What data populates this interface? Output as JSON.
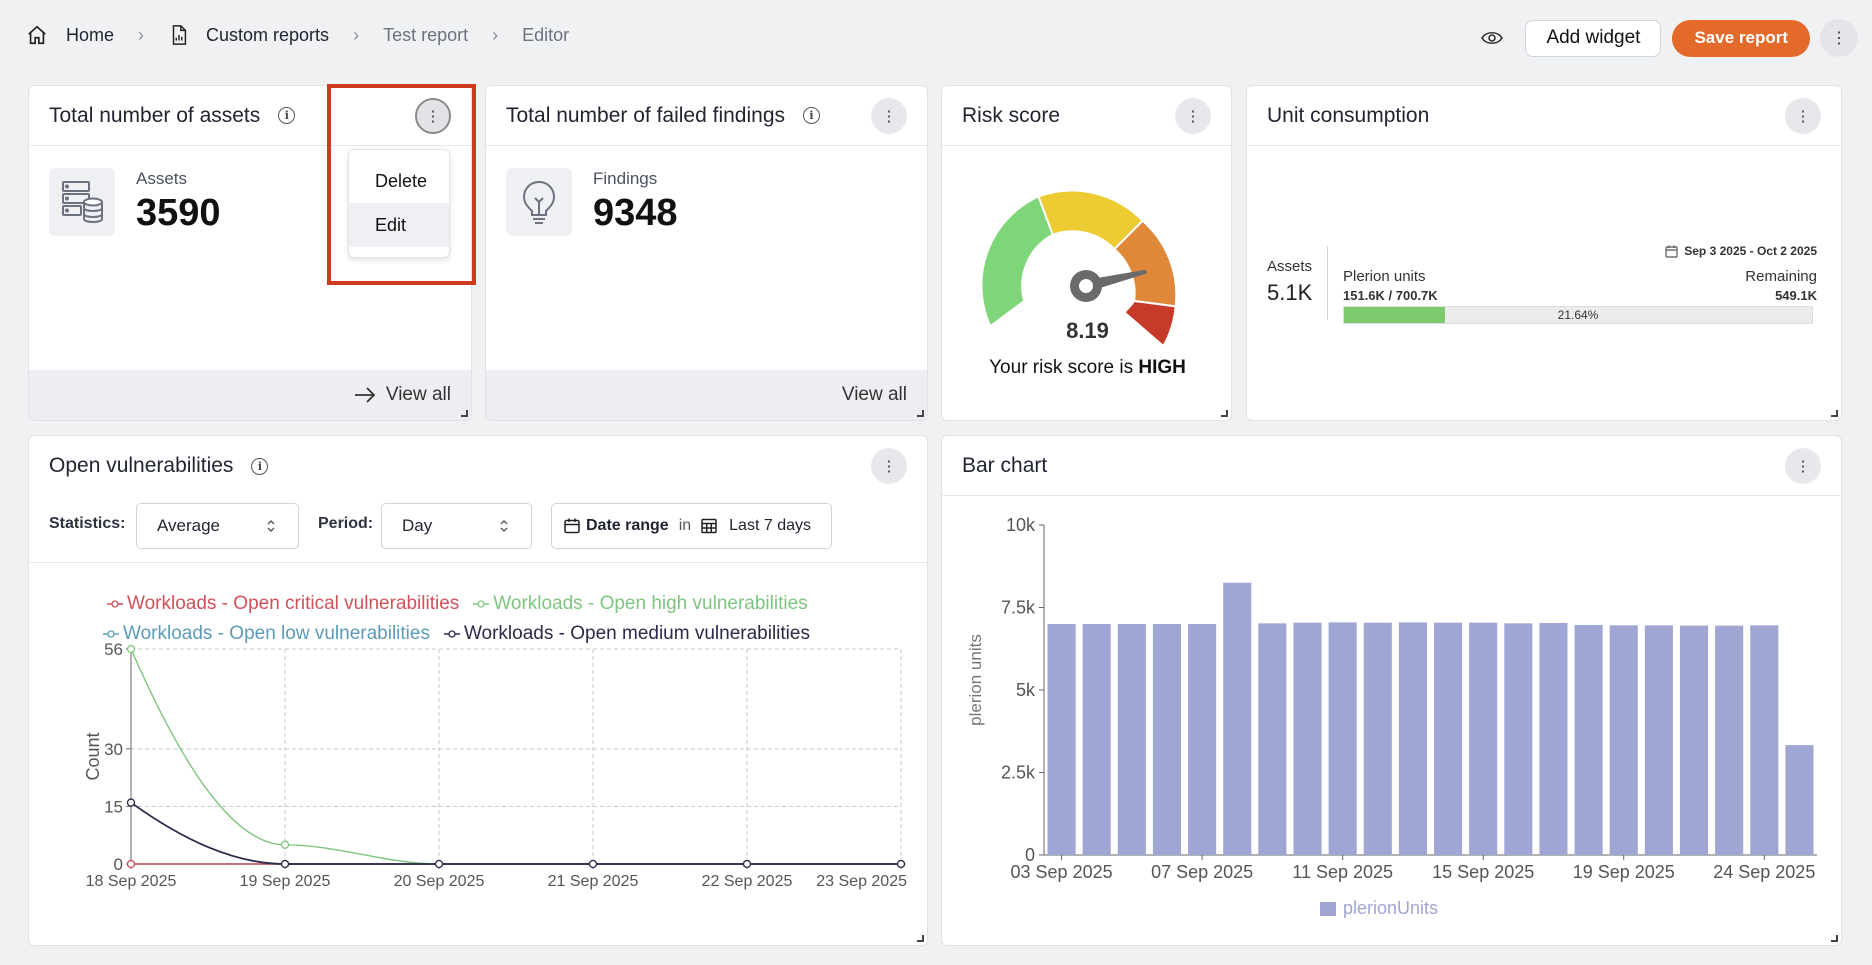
{
  "breadcrumb": {
    "home": "Home",
    "custom_reports": "Custom reports",
    "report": "Test report",
    "current": "Editor"
  },
  "toolbar": {
    "add_widget": "Add widget",
    "save_report": "Save report"
  },
  "widgets": {
    "assets": {
      "title": "Total number of assets",
      "label": "Assets",
      "value": "3590",
      "view_all": "View all"
    },
    "findings": {
      "title": "Total number of failed findings",
      "label": "Findings",
      "value": "9348",
      "view_all": "View all"
    },
    "risk": {
      "title": "Risk score",
      "score": "8.19",
      "text_prefix": "Your risk score is ",
      "level": "HIGH",
      "needle_value": 8.19,
      "max": 10
    },
    "units": {
      "title": "Unit consumption",
      "assets_label": "Assets",
      "assets_value": "5.1K",
      "date_range": "Sep 3 2025 - Oct 2 2025",
      "units_label": "Plerion units",
      "units_value": "151.6K / 700.7K",
      "remaining_label": "Remaining",
      "remaining_value": "549.1K",
      "percent": "21.64%",
      "percent_value": 21.64
    }
  },
  "context_menu": {
    "delete": "Delete",
    "edit": "Edit"
  },
  "open_vuln": {
    "title": "Open vulnerabilities",
    "statistics_label": "Statistics:",
    "statistics_value": "Average",
    "period_label": "Period:",
    "period_value": "Day",
    "date_range_label": "Date range",
    "in_text": "in",
    "date_range_value": "Last 7 days"
  },
  "bar_widget": {
    "title": "Bar chart"
  },
  "colors": {
    "accent": "#e36a2a",
    "critical": "#d1505a",
    "high": "#7dc57e",
    "low": "#5b9bb8",
    "medium": "#2a2a4a",
    "bar": "#a0a6d4",
    "highlight": "#cf3a1d"
  },
  "chart_data": [
    {
      "type": "line",
      "ylabel": "Count",
      "x": [
        "18 Sep 2025",
        "19 Sep 2025",
        "20 Sep 2025",
        "21 Sep 2025",
        "22 Sep 2025",
        "23 Sep 2025"
      ],
      "yticks": [
        0,
        15,
        30,
        56
      ],
      "ylim": [
        0,
        56
      ],
      "grid": true,
      "legend_placement": "top",
      "series": [
        {
          "name": "Workloads - Open critical vulnerabilities",
          "color": "#d1505a",
          "values": [
            0,
            0,
            0,
            0,
            0,
            0
          ]
        },
        {
          "name": "Workloads - Open high vulnerabilities",
          "color": "#7dc57e",
          "values": [
            56,
            5,
            0,
            0,
            0,
            0
          ]
        },
        {
          "name": "Workloads - Open low vulnerabilities",
          "color": "#5b9bb8",
          "values": [
            0,
            0,
            0,
            0,
            0,
            0
          ]
        },
        {
          "name": "Workloads - Open medium vulnerabilities",
          "color": "#2a2a4a",
          "values": [
            16,
            0,
            0,
            0,
            0,
            0
          ]
        }
      ]
    },
    {
      "type": "bar",
      "ylabel": "plerion units",
      "ylim": [
        0,
        10000
      ],
      "yticks": [
        0,
        2500,
        5000,
        7500,
        10000
      ],
      "ytick_labels": [
        "0",
        "2.5k",
        "5k",
        "7.5k",
        "10k"
      ],
      "xtick_labels": [
        "03 Sep 2025",
        "07 Sep 2025",
        "11 Sep 2025",
        "15 Sep 2025",
        "19 Sep 2025",
        "24 Sep 2025"
      ],
      "xtick_indices": [
        0,
        4,
        8,
        12,
        16,
        20
      ],
      "legend_placement": "bottom",
      "series": [
        {
          "name": "plerionUnits",
          "color": "#a0a6d4",
          "values": [
            7000,
            7000,
            7000,
            7000,
            7000,
            8250,
            7020,
            7040,
            7050,
            7040,
            7050,
            7040,
            7040,
            7020,
            7030,
            6970,
            6960,
            6960,
            6950,
            6950,
            6960,
            3330
          ]
        }
      ]
    }
  ]
}
